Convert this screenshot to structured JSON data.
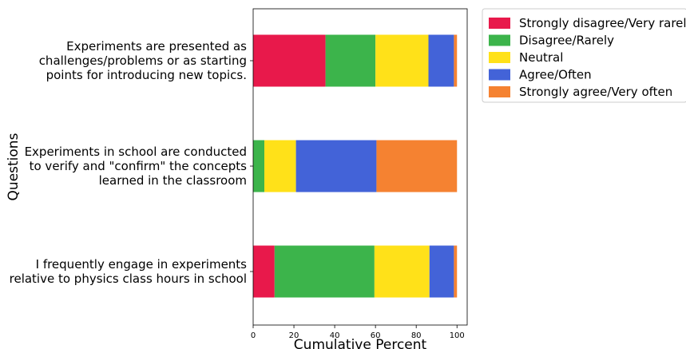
{
  "chart_data": {
    "type": "bar",
    "orientation": "horizontal",
    "stacked": true,
    "xlabel": "Cumulative Percent",
    "ylabel": "Questions",
    "xlim": [
      0,
      105
    ],
    "xticks": [
      0,
      20,
      40,
      60,
      80,
      100
    ],
    "grid": false,
    "legend_position": "outside top-right",
    "categories": [
      [
        "Experiments are presented as",
        "challenges/problems or as starting",
        "points for introducing new topics."
      ],
      [
        "Experiments in school are conducted",
        "to verify and \"confirm\" the concepts",
        "learned in the classroom"
      ],
      [
        "I frequently engage in experiments",
        "relative to physics class hours in school"
      ]
    ],
    "series": [
      {
        "name": "Strongly disagree/Very rarely",
        "color": "#e8194b",
        "values": [
          35.5,
          0,
          10.5
        ]
      },
      {
        "name": "Disagree/Rarely",
        "color": "#3cb44b",
        "values": [
          24.5,
          5.5,
          49
        ]
      },
      {
        "name": "Neutral",
        "color": "#ffe119",
        "values": [
          26,
          15.5,
          27
        ]
      },
      {
        "name": "Agree/Often",
        "color": "#4363d8",
        "values": [
          12.5,
          39.5,
          12
        ]
      },
      {
        "name": "Strongly agree/Very often",
        "color": "#f58231",
        "values": [
          1.5,
          39.5,
          1.5
        ]
      }
    ]
  }
}
